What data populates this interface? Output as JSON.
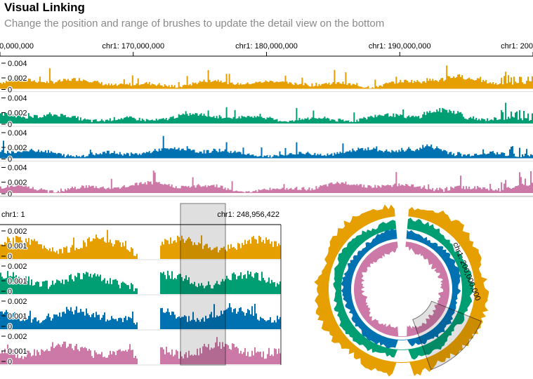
{
  "header": {
    "title": "Visual Linking",
    "subtitle": "Change the position and range of brushes to update the detail view on the bottom"
  },
  "colors": {
    "series": [
      "#E69F00",
      "#009E73",
      "#0072B2",
      "#CC79A7"
    ],
    "brush_fill": "#d9d9d9",
    "brush_stroke": "#777777",
    "axis": "#000000"
  },
  "detail_view": {
    "x_range": [
      160000000,
      200000000
    ],
    "tick_labels": [
      "0,000,000",
      "chr1: 170,000,000",
      "chr1: 180,000,000",
      "chr1: 190,000,000",
      "chr1: 200"
    ],
    "tick_positions": [
      160000000,
      170000000,
      180000000,
      190000000,
      200000000
    ],
    "y_tick_labels": [
      "0.004",
      "0.002",
      "0"
    ],
    "y_range": [
      0,
      0.005
    ]
  },
  "overview_view": {
    "start_label": "chr1: 1",
    "end_label": "chr1: 248,956,422",
    "y_tick_labels": [
      "0.002",
      "0.001",
      "0"
    ],
    "y_range": [
      0,
      0.0025
    ],
    "brush_range": [
      160000000,
      200000000
    ]
  },
  "circular_view": {
    "brush_label": "chr1: 200,000,000",
    "brush_range": [
      160000000,
      200000000
    ]
  }
}
